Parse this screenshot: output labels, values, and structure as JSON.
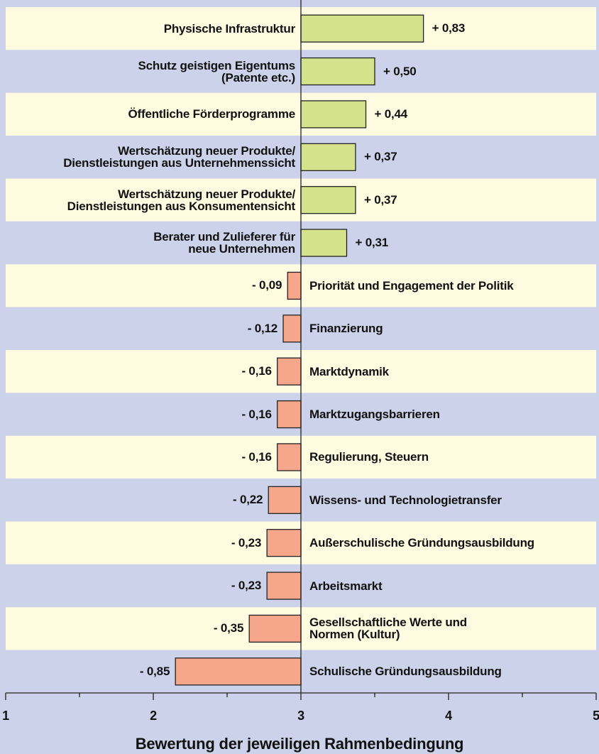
{
  "chart_data": {
    "type": "bar",
    "orientation": "horizontal",
    "categories": [
      "Physische Infrastruktur",
      "Schutz geistigen Eigentums\n(Patente etc.)",
      "Öffentliche Förderprogramme",
      "Wertschätzung neuer Produkte/\nDienstleistungen aus Unternehmenssicht",
      "Wertschätzung neuer Produkte/\nDienstleistungen aus Konsumentensicht",
      "Berater und Zulieferer für\nneue Unternehmen",
      "Priorität und Engagement der Politik",
      "Finanzierung",
      "Marktdynamik",
      "Marktzugangsbarrieren",
      "Regulierung, Steuern",
      "Wissens- und Technologietransfer",
      "Außerschulische Gründungsausbildung",
      "Arbeitsmarkt",
      "Gesellschaftliche Werte und\nNormen (Kultur)",
      "Schulische Gründungsausbildung"
    ],
    "values": [
      0.83,
      0.5,
      0.44,
      0.37,
      0.37,
      0.31,
      -0.09,
      -0.12,
      -0.16,
      -0.16,
      -0.16,
      -0.22,
      -0.23,
      -0.23,
      -0.35,
      -0.85
    ],
    "value_labels": [
      "+ 0,83",
      "+ 0,50",
      "+ 0,44",
      "+ 0,37",
      "+ 0,37",
      "+ 0,31",
      "- 0,09",
      "- 0,12",
      "- 0,16",
      "- 0,16",
      "- 0,16",
      "- 0,22",
      "- 0,23",
      "- 0,23",
      "- 0,35",
      "- 0,85"
    ],
    "positive_color": "#d4e38b",
    "negative_color": "#f6a78b",
    "row_colors": [
      "#fffbe1",
      "#ccd2ea"
    ],
    "xlabel": "Bewertung der jeweiligen Rahmenbedingung",
    "xlim": [
      1,
      5
    ],
    "xticks": [
      1,
      2,
      3,
      4,
      5
    ],
    "minor_xticks": [
      1.5,
      2.5,
      3.5,
      4.5
    ]
  }
}
